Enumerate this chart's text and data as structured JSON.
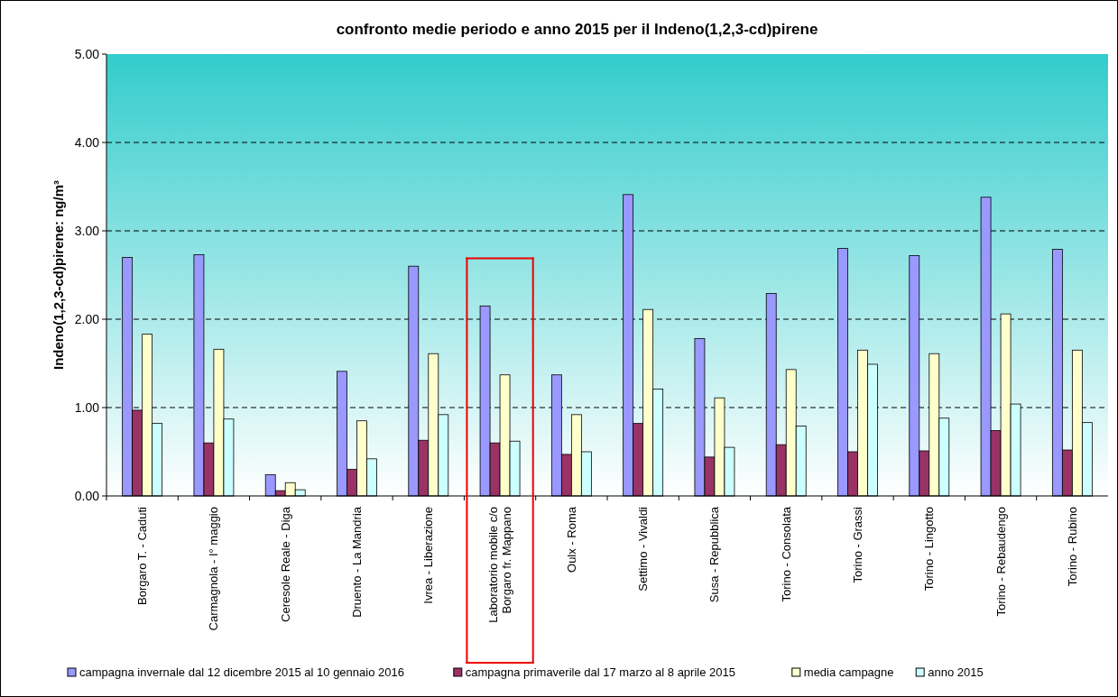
{
  "chart_data": {
    "type": "bar",
    "title": "confronto medie periodo e anno 2015 per il Indeno(1,2,3-cd)pirene",
    "ylabel": "Indeno(1,2,3-cd)pirene: ng/m³",
    "categories": [
      "Borgaro T. - Caduti",
      "Carmagnola - I° maggio",
      "Ceresole Reale - Diga",
      "Druento - La Mandria",
      "Ivrea - Liberazione",
      "Laboratorio mobile c/o Borgaro fr. Mappano",
      "Oulx - Roma",
      "Settimo - Vivaldi",
      "Susa - Repubblica",
      "Torino - Consolata",
      "Torino - Grassi",
      "Torino - Lingotto",
      "Torino - Rebaudengo",
      "Torino - Rubino"
    ],
    "series": [
      {
        "name": "campagna invernale dal 12 dicembre 2015 al 10 gennaio 2016",
        "color": "#9999ff",
        "values": [
          2.7,
          2.73,
          0.24,
          1.41,
          2.6,
          2.15,
          1.37,
          3.41,
          1.78,
          2.29,
          2.8,
          2.72,
          3.38,
          2.79
        ]
      },
      {
        "name": "campagna primaverile dal 17 marzo al 8 aprile 2015",
        "color": "#993366",
        "values": [
          0.97,
          0.6,
          0.06,
          0.3,
          0.63,
          0.6,
          0.47,
          0.82,
          0.44,
          0.58,
          0.5,
          0.51,
          0.74,
          0.52
        ]
      },
      {
        "name": "media campagne",
        "color": "#ffffcc",
        "values": [
          1.83,
          1.66,
          0.15,
          0.85,
          1.61,
          1.37,
          0.92,
          2.11,
          1.11,
          1.43,
          1.65,
          1.61,
          2.06,
          1.65
        ]
      },
      {
        "name": "anno 2015",
        "color": "#ccffff",
        "values": [
          0.82,
          0.87,
          0.07,
          0.42,
          0.92,
          0.62,
          0.5,
          1.21,
          0.55,
          0.79,
          1.49,
          0.88,
          1.04,
          0.83
        ]
      }
    ],
    "ylim": [
      0,
      5
    ],
    "yticks": [
      {
        "value": 0,
        "label": "0.00"
      },
      {
        "value": 1,
        "label": "1.00"
      },
      {
        "value": 2,
        "label": "2.00"
      },
      {
        "value": 3,
        "label": "3.00"
      },
      {
        "value": 4,
        "label": "4.00"
      },
      {
        "value": 5,
        "label": "5.00"
      }
    ],
    "grid": "y",
    "legend": "bottom"
  }
}
